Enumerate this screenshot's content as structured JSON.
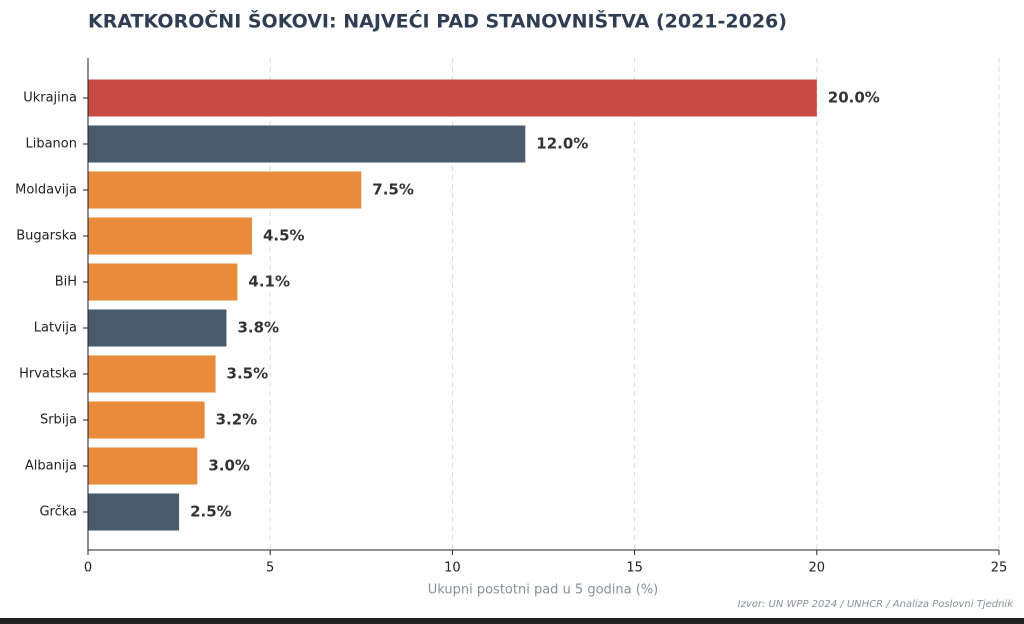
{
  "chart_data": {
    "type": "barh",
    "title": "KRATKOROČNI ŠOKOVI: NAJVEĆI PAD STANOVNIŠTVA (2021-2026)",
    "xlabel": "Ukupni postotni pad u 5 godina (%)",
    "source": "Izvor: UN WPP 2024 / UNHCR / Analiza Poslovni Tjednik",
    "categories": [
      "Ukrajina",
      "Libanon",
      "Moldavija",
      "Bugarska",
      "BiH",
      "Latvija",
      "Hrvatska",
      "Srbija",
      "Albanija",
      "Grčka"
    ],
    "values": [
      20.0,
      12.0,
      7.5,
      4.5,
      4.1,
      3.8,
      3.5,
      3.2,
      3.0,
      2.5
    ],
    "value_labels": [
      "20.0%",
      "12.0%",
      "7.5%",
      "4.5%",
      "4.1%",
      "3.8%",
      "3.5%",
      "3.2%",
      "3.0%",
      "2.5%"
    ],
    "colors": [
      "#c84b43",
      "#4a5a6c",
      "#e88b3a",
      "#e88b3a",
      "#e88b3a",
      "#4a5a6c",
      "#e88b3a",
      "#e88b3a",
      "#e88b3a",
      "#4a5a6c"
    ],
    "xlim": [
      0,
      25
    ],
    "xticks": [
      0,
      5,
      10,
      15,
      20,
      25
    ],
    "grid": true
  }
}
